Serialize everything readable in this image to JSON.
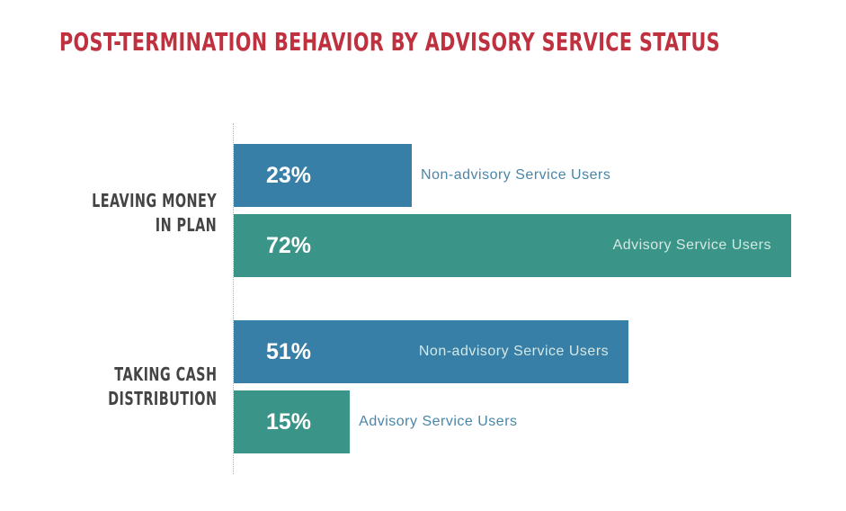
{
  "title": "POST-TERMINATION BEHAVIOR BY ADVISORY SERVICE STATUS",
  "colors": {
    "title": "#c0313f",
    "non_advisory": "#377fa7",
    "advisory": "#3a9588",
    "label_on_white": "#4a86a8",
    "label_on_bar": "#d4e8e4"
  },
  "chart_data": {
    "type": "bar",
    "orientation": "horizontal",
    "title": "POST-TERMINATION BEHAVIOR BY ADVISORY SERVICE STATUS",
    "categories": [
      {
        "label_lines": [
          "LEAVING MONEY",
          "IN PLAN"
        ]
      },
      {
        "label_lines": [
          "TAKING CASH",
          "DISTRIBUTION"
        ]
      }
    ],
    "series": [
      {
        "name": "Non-advisory Service Users",
        "values": [
          23,
          51
        ],
        "value_labels": [
          "23%",
          "51%"
        ],
        "color": "#377fa7"
      },
      {
        "name": "Advisory Service Users",
        "values": [
          72,
          15
        ],
        "value_labels": [
          "72%",
          "15%"
        ],
        "color": "#3a9588"
      }
    ],
    "xlim": [
      0,
      72
    ],
    "grid": false,
    "legend": "none"
  }
}
